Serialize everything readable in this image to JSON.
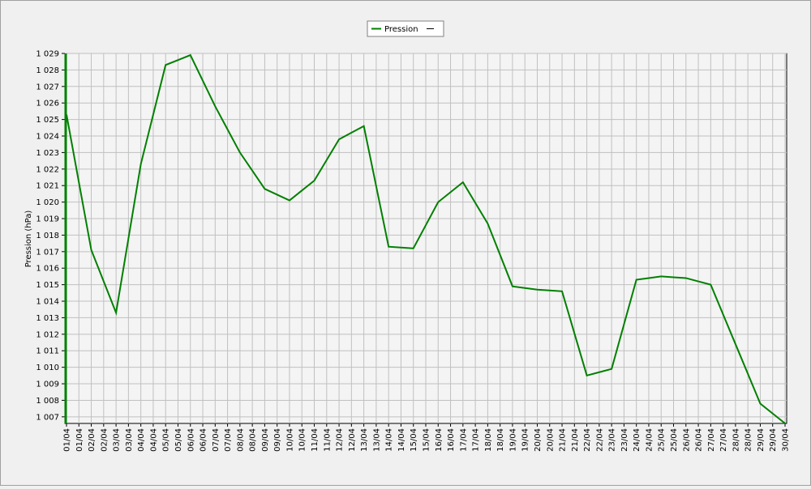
{
  "chart_data": {
    "type": "line",
    "y_label": "Pression (hPa)",
    "categories": [
      "01/04",
      "01/04",
      "02/04",
      "02/04",
      "03/04",
      "03/04",
      "04/04",
      "04/04",
      "05/04",
      "05/04",
      "06/04",
      "06/04",
      "07/04",
      "07/04",
      "08/04",
      "08/04",
      "09/04",
      "09/04",
      "10/04",
      "10/04",
      "11/04",
      "11/04",
      "12/04",
      "12/04",
      "13/04",
      "13/04",
      "14/04",
      "14/04",
      "15/04",
      "15/04",
      "16/04",
      "16/04",
      "17/04",
      "17/04",
      "18/04",
      "18/04",
      "19/04",
      "19/04",
      "20/04",
      "20/04",
      "21/04",
      "21/04",
      "22/04",
      "22/04",
      "23/04",
      "23/04",
      "24/04",
      "24/04",
      "25/04",
      "25/04",
      "26/04",
      "26/04",
      "27/04",
      "27/04",
      "28/04",
      "28/04",
      "29/04",
      "29/04",
      "30/04"
    ],
    "series": [
      {
        "name": "Pression",
        "color": "#008000",
        "values": [
          1025.3,
          1021.2,
          1017.1,
          1015.2,
          1013.3,
          1017.8,
          1022.3,
          1025.3,
          1028.3,
          1028.6,
          1028.9,
          1027.35,
          1025.8,
          1024.4,
          1023.0,
          1021.9,
          1020.8,
          1020.45,
          1020.1,
          1020.7,
          1021.3,
          1022.55,
          1023.8,
          1024.2,
          1024.6,
          1020.95,
          1017.3,
          1017.25,
          1017.2,
          1018.6,
          1020.0,
          1020.6,
          1021.2,
          1019.95,
          1018.7,
          1016.8,
          1014.9,
          1014.8,
          1014.7,
          1014.65,
          1014.6,
          1012.05,
          1009.5,
          1009.7,
          1009.9,
          1012.6,
          1015.3,
          1015.4,
          1015.5,
          1015.45,
          1015.4,
          1015.2,
          1015.0,
          1013.2,
          1011.4,
          1009.6,
          1007.8,
          1007.2,
          1006.6
        ]
      }
    ],
    "ylim": [
      1006.6,
      1029
    ],
    "yticks": [
      {
        "value": 1007,
        "label": "1 007"
      },
      {
        "value": 1008,
        "label": "1 008"
      },
      {
        "value": 1009,
        "label": "1 009"
      },
      {
        "value": 1010,
        "label": "1 010"
      },
      {
        "value": 1011,
        "label": "1 011"
      },
      {
        "value": 1012,
        "label": "1 012"
      },
      {
        "value": 1013,
        "label": "1 013"
      },
      {
        "value": 1014,
        "label": "1 014"
      },
      {
        "value": 1015,
        "label": "1 015"
      },
      {
        "value": 1016,
        "label": "1 016"
      },
      {
        "value": 1017,
        "label": "1 017"
      },
      {
        "value": 1018,
        "label": "1 018"
      },
      {
        "value": 1019,
        "label": "1 019"
      },
      {
        "value": 1020,
        "label": "1 020"
      },
      {
        "value": 1021,
        "label": "1 021"
      },
      {
        "value": 1022,
        "label": "1 022"
      },
      {
        "value": 1023,
        "label": "1 023"
      },
      {
        "value": 1024,
        "label": "1 024"
      },
      {
        "value": 1025,
        "label": "1 025"
      },
      {
        "value": 1026,
        "label": "1 026"
      },
      {
        "value": 1027,
        "label": "1 027"
      },
      {
        "value": 1028,
        "label": "1 028"
      },
      {
        "value": 1029,
        "label": "1 029"
      }
    ],
    "grid": true,
    "legend": "top"
  }
}
